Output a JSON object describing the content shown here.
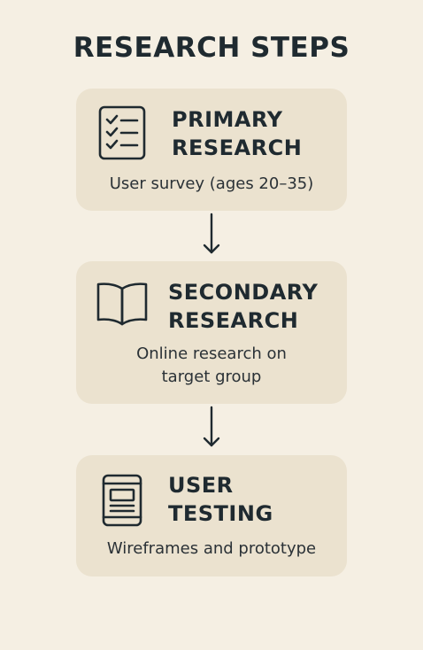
{
  "title": "RESEARCH STEPS",
  "colors": {
    "background": "#f5efe3",
    "card": "#ebe2cf",
    "text": "#1f2a30"
  },
  "steps": [
    {
      "icon": "checklist-icon",
      "heading_line1": "PRIMARY",
      "heading_line2": "RESEARCH",
      "desc_line1": "User survey (ages 20–35)",
      "desc_line2": ""
    },
    {
      "icon": "open-book-icon",
      "heading_line1": "SECONDARY",
      "heading_line2": "RESEARCH",
      "desc_line1": "Online research on",
      "desc_line2": "target group"
    },
    {
      "icon": "mobile-wireframe-icon",
      "heading_line1": "USER",
      "heading_line2": "TESTING",
      "desc_line1": "Wireframes and prototype",
      "desc_line2": ""
    }
  ]
}
